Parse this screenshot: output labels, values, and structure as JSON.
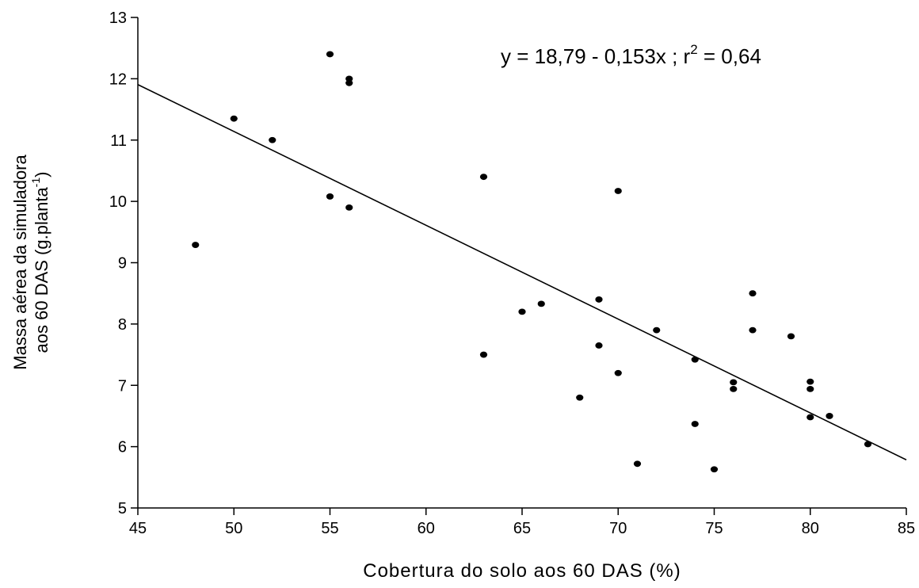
{
  "chart_data": {
    "type": "scatter",
    "xlabel": "Cobertura do solo aos 60 DAS (%)",
    "ylabel_line1": "Massa aérea da simuladora",
    "ylabel_line2_prefix": "aos 60 DAS (g.planta",
    "ylabel_line2_sup": "-1",
    "ylabel_line2_suffix": ")",
    "xlim": [
      45,
      85
    ],
    "ylim": [
      5,
      13
    ],
    "xticks": [
      45,
      50,
      55,
      60,
      65,
      70,
      75,
      80,
      85
    ],
    "yticks": [
      5,
      6,
      7,
      8,
      9,
      10,
      11,
      12,
      13
    ],
    "equation": {
      "main": "y = 18,79 - 0,153x ;  r",
      "sup": "2",
      "tail": " = 0,64"
    },
    "regression": {
      "intercept": 18.79,
      "slope": -0.153
    },
    "grid": false,
    "points": [
      {
        "x": 48,
        "y": 9.29
      },
      {
        "x": 50,
        "y": 11.35
      },
      {
        "x": 52,
        "y": 11.0
      },
      {
        "x": 55,
        "y": 12.4
      },
      {
        "x": 55,
        "y": 10.08
      },
      {
        "x": 56,
        "y": 12.0
      },
      {
        "x": 56,
        "y": 11.93
      },
      {
        "x": 56,
        "y": 9.9
      },
      {
        "x": 63,
        "y": 10.4
      },
      {
        "x": 63,
        "y": 7.5
      },
      {
        "x": 65,
        "y": 8.2
      },
      {
        "x": 66,
        "y": 8.33
      },
      {
        "x": 68,
        "y": 6.8
      },
      {
        "x": 69,
        "y": 8.4
      },
      {
        "x": 69,
        "y": 7.65
      },
      {
        "x": 70,
        "y": 10.17
      },
      {
        "x": 70,
        "y": 7.2
      },
      {
        "x": 71,
        "y": 5.72
      },
      {
        "x": 72,
        "y": 7.9
      },
      {
        "x": 74,
        "y": 7.42
      },
      {
        "x": 74,
        "y": 6.37
      },
      {
        "x": 75,
        "y": 5.63
      },
      {
        "x": 76,
        "y": 7.05
      },
      {
        "x": 76,
        "y": 6.94
      },
      {
        "x": 77,
        "y": 8.5
      },
      {
        "x": 77,
        "y": 7.9
      },
      {
        "x": 79,
        "y": 7.8
      },
      {
        "x": 80,
        "y": 7.06
      },
      {
        "x": 80,
        "y": 6.94
      },
      {
        "x": 80,
        "y": 6.48
      },
      {
        "x": 81,
        "y": 6.5
      },
      {
        "x": 83,
        "y": 6.04
      }
    ]
  }
}
